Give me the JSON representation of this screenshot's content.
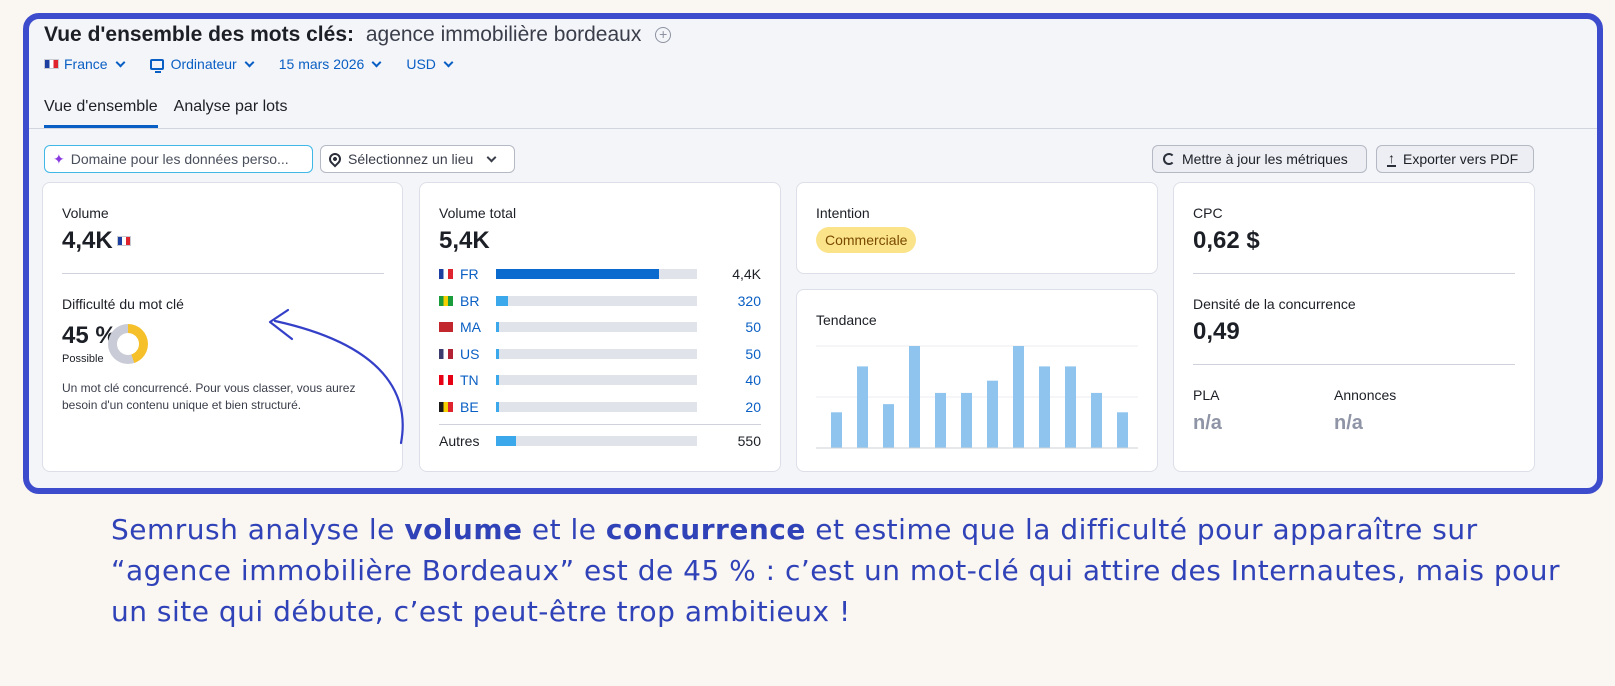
{
  "header": {
    "title_label": "Vue d'ensemble des mots clés:",
    "keyword": "agence immobilière bordeaux",
    "add_icon": "plus-circle-icon"
  },
  "filters": {
    "country": "France",
    "device": "Ordinateur",
    "date": "15 mars 2026",
    "currency": "USD"
  },
  "tabs": [
    {
      "label": "Vue d'ensemble",
      "active": true
    },
    {
      "label": "Analyse par lots",
      "active": false
    }
  ],
  "toolbar": {
    "domain_placeholder": "Domaine pour les données perso...",
    "location_placeholder": "Sélectionnez un lieu",
    "refresh_label": "Mettre à jour les métriques",
    "export_label": "Exporter vers PDF"
  },
  "volume_card": {
    "volume_label": "Volume",
    "volume_value": "4,4K",
    "kd_label": "Difficulté du mot clé",
    "kd_value": "45 %",
    "kd_fraction": 0.45,
    "kd_level": "Possible",
    "kd_description": "Un mot clé concurrencé. Pour vous classer, vous aurez besoin d'un contenu unique et bien structuré."
  },
  "total_volume_card": {
    "label": "Volume total",
    "value": "5,4K",
    "countries": [
      {
        "code": "FR",
        "value": "4,4K",
        "share": 0.81,
        "flag": [
          "#1d3fa0",
          "#ffffff",
          "#e0242e"
        ],
        "bar_color": "#0a6acd",
        "dark": true
      },
      {
        "code": "BR",
        "value": "320",
        "share": 0.06,
        "flag": [
          "#1a9b3c",
          "#f5d000",
          "#1a9b3c"
        ],
        "bar_color": "#3aa8ea",
        "dark": false
      },
      {
        "code": "MA",
        "value": "50",
        "share": 0.012,
        "flag": [
          "#c1272d",
          "#c1272d",
          "#c1272d"
        ],
        "bar_color": "#3aa8ea",
        "dark": false
      },
      {
        "code": "US",
        "value": "50",
        "share": 0.012,
        "flag": [
          "#3c3b6e",
          "#ffffff",
          "#b22234"
        ],
        "bar_color": "#3aa8ea",
        "dark": false
      },
      {
        "code": "TN",
        "value": "40",
        "share": 0.01,
        "flag": [
          "#e70013",
          "#ffffff",
          "#e70013"
        ],
        "bar_color": "#3aa8ea",
        "dark": false
      },
      {
        "code": "BE",
        "value": "20",
        "share": 0.006,
        "flag": [
          "#1a1a1a",
          "#f5d000",
          "#e0242e"
        ],
        "bar_color": "#3aa8ea",
        "dark": false
      }
    ],
    "others": {
      "label": "Autres",
      "value": "550",
      "share": 0.1
    }
  },
  "intent_card": {
    "label": "Intention",
    "badge": "Commerciale"
  },
  "trend_card": {
    "label": "Tendance",
    "chart_data": {
      "type": "bar",
      "values": [
        0.35,
        0.8,
        0.43,
        1.0,
        0.54,
        0.54,
        0.66,
        1.0,
        0.8,
        0.8,
        0.54,
        0.35
      ],
      "ylim": [
        0,
        1
      ],
      "color": "#8ec4ee"
    }
  },
  "cpc_card": {
    "cpc_label": "CPC",
    "cpc_value": "0,62 $",
    "density_label": "Densité de la concurrence",
    "density_value": "0,49",
    "pla_label": "PLA",
    "pla_value": "n/a",
    "ads_label": "Annonces",
    "ads_value": "n/a"
  },
  "caption": {
    "part1": "Semrush analyse le ",
    "bold1": "volume",
    "part2": " et le ",
    "bold2": "concurrence",
    "part3": " et estime que la difficulté pour apparaître sur  “agence immobilière Bordeaux” est de 45 % : c’est un mot-clé qui attire des Internautes, mais pour un site qui débute, c’est peut-être trop ambitieux !"
  },
  "colors": {
    "frame": "#3d4ccc",
    "link": "#0a5fc4",
    "caption": "#3042b8",
    "donut_fill": "#f5c02a"
  }
}
